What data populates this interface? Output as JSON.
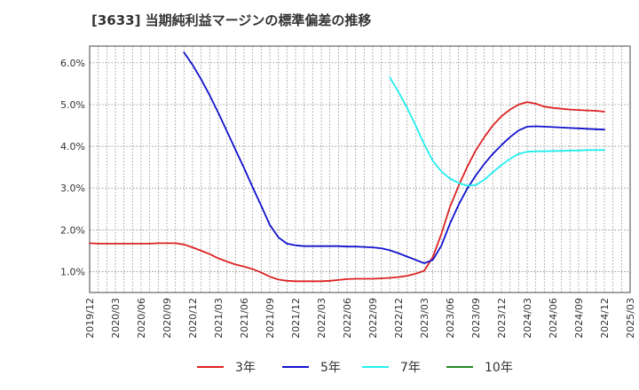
{
  "chart_data": {
    "type": "line",
    "title": "[3633]  当期純利益マージンの標準偏差の推移",
    "xlabel": "",
    "ylabel": "",
    "ylim": [
      0.5,
      6.4
    ],
    "y_ticks": [
      1.0,
      2.0,
      3.0,
      4.0,
      5.0,
      6.0
    ],
    "y_tick_labels": [
      "1.0%",
      "2.0%",
      "3.0%",
      "4.0%",
      "5.0%",
      "6.0%"
    ],
    "x_range": [
      "2019-12",
      "2025-03"
    ],
    "x_tick_labels": [
      "2019/12",
      "2020/03",
      "2020/06",
      "2020/09",
      "2020/12",
      "2021/03",
      "2021/06",
      "2021/09",
      "2021/12",
      "2022/03",
      "2022/06",
      "2022/09",
      "2022/12",
      "2023/03",
      "2023/06",
      "2023/09",
      "2023/12",
      "2024/03",
      "2024/06",
      "2024/09",
      "2024/12",
      "2025/03"
    ],
    "grid": true,
    "legend_position": "bottom",
    "series": [
      {
        "name": "3年",
        "color": "#dd2222",
        "points": [
          [
            "2019-12",
            1.68
          ],
          [
            "2020-01",
            1.67
          ],
          [
            "2020-02",
            1.67
          ],
          [
            "2020-03",
            1.67
          ],
          [
            "2020-04",
            1.67
          ],
          [
            "2020-05",
            1.67
          ],
          [
            "2020-06",
            1.67
          ],
          [
            "2020-07",
            1.67
          ],
          [
            "2020-08",
            1.68
          ],
          [
            "2020-09",
            1.68
          ],
          [
            "2020-10",
            1.68
          ],
          [
            "2020-11",
            1.65
          ],
          [
            "2020-12",
            1.58
          ],
          [
            "2021-01",
            1.5
          ],
          [
            "2021-02",
            1.42
          ],
          [
            "2021-03",
            1.32
          ],
          [
            "2021-04",
            1.24
          ],
          [
            "2021-05",
            1.17
          ],
          [
            "2021-06",
            1.12
          ],
          [
            "2021-07",
            1.06
          ],
          [
            "2021-08",
            0.98
          ],
          [
            "2021-09",
            0.88
          ],
          [
            "2021-10",
            0.81
          ],
          [
            "2021-11",
            0.78
          ],
          [
            "2021-12",
            0.77
          ],
          [
            "2022-01",
            0.77
          ],
          [
            "2022-02",
            0.77
          ],
          [
            "2022-03",
            0.77
          ],
          [
            "2022-04",
            0.78
          ],
          [
            "2022-05",
            0.8
          ],
          [
            "2022-06",
            0.82
          ],
          [
            "2022-07",
            0.83
          ],
          [
            "2022-08",
            0.83
          ],
          [
            "2022-09",
            0.83
          ],
          [
            "2022-10",
            0.84
          ],
          [
            "2022-11",
            0.85
          ],
          [
            "2022-12",
            0.87
          ],
          [
            "2023-01",
            0.9
          ],
          [
            "2023-02",
            0.95
          ],
          [
            "2023-03",
            1.02
          ],
          [
            "2023-04",
            1.35
          ],
          [
            "2023-05",
            1.9
          ],
          [
            "2023-06",
            2.55
          ],
          [
            "2023-07",
            3.05
          ],
          [
            "2023-08",
            3.5
          ],
          [
            "2023-09",
            3.9
          ],
          [
            "2023-10",
            4.22
          ],
          [
            "2023-11",
            4.5
          ],
          [
            "2023-12",
            4.72
          ],
          [
            "2024-01",
            4.88
          ],
          [
            "2024-02",
            5.0
          ],
          [
            "2024-03",
            5.06
          ],
          [
            "2024-04",
            5.02
          ],
          [
            "2024-05",
            4.95
          ],
          [
            "2024-06",
            4.92
          ],
          [
            "2024-07",
            4.9
          ],
          [
            "2024-08",
            4.88
          ],
          [
            "2024-09",
            4.87
          ],
          [
            "2024-10",
            4.86
          ],
          [
            "2024-11",
            4.85
          ],
          [
            "2024-12",
            4.83
          ]
        ]
      },
      {
        "name": "5年",
        "color": "#1111cc",
        "points": [
          [
            "2020-11",
            6.25
          ],
          [
            "2020-12",
            5.95
          ],
          [
            "2021-01",
            5.6
          ],
          [
            "2021-02",
            5.22
          ],
          [
            "2021-03",
            4.8
          ],
          [
            "2021-04",
            4.36
          ],
          [
            "2021-05",
            3.92
          ],
          [
            "2021-06",
            3.48
          ],
          [
            "2021-07",
            3.02
          ],
          [
            "2021-08",
            2.58
          ],
          [
            "2021-09",
            2.12
          ],
          [
            "2021-10",
            1.82
          ],
          [
            "2021-11",
            1.67
          ],
          [
            "2021-12",
            1.63
          ],
          [
            "2022-01",
            1.61
          ],
          [
            "2022-02",
            1.61
          ],
          [
            "2022-03",
            1.61
          ],
          [
            "2022-04",
            1.61
          ],
          [
            "2022-05",
            1.61
          ],
          [
            "2022-06",
            1.6
          ],
          [
            "2022-07",
            1.6
          ],
          [
            "2022-08",
            1.59
          ],
          [
            "2022-09",
            1.58
          ],
          [
            "2022-10",
            1.56
          ],
          [
            "2022-11",
            1.51
          ],
          [
            "2022-12",
            1.44
          ],
          [
            "2023-01",
            1.36
          ],
          [
            "2023-02",
            1.28
          ],
          [
            "2023-03",
            1.2
          ],
          [
            "2023-04",
            1.28
          ],
          [
            "2023-05",
            1.62
          ],
          [
            "2023-06",
            2.15
          ],
          [
            "2023-07",
            2.6
          ],
          [
            "2023-08",
            2.98
          ],
          [
            "2023-09",
            3.3
          ],
          [
            "2023-10",
            3.58
          ],
          [
            "2023-11",
            3.82
          ],
          [
            "2023-12",
            4.03
          ],
          [
            "2024-01",
            4.22
          ],
          [
            "2024-02",
            4.38
          ],
          [
            "2024-03",
            4.47
          ],
          [
            "2024-04",
            4.48
          ],
          [
            "2024-05",
            4.47
          ],
          [
            "2024-06",
            4.46
          ],
          [
            "2024-07",
            4.45
          ],
          [
            "2024-08",
            4.44
          ],
          [
            "2024-09",
            4.43
          ],
          [
            "2024-10",
            4.42
          ],
          [
            "2024-11",
            4.41
          ],
          [
            "2024-12",
            4.4
          ]
        ]
      },
      {
        "name": "7年",
        "color": "#22eeee",
        "points": [
          [
            "2022-11",
            5.65
          ],
          [
            "2022-12",
            5.3
          ],
          [
            "2023-01",
            4.92
          ],
          [
            "2023-02",
            4.5
          ],
          [
            "2023-03",
            4.05
          ],
          [
            "2023-04",
            3.65
          ],
          [
            "2023-05",
            3.4
          ],
          [
            "2023-06",
            3.23
          ],
          [
            "2023-07",
            3.12
          ],
          [
            "2023-08",
            3.06
          ],
          [
            "2023-09",
            3.07
          ],
          [
            "2023-10",
            3.2
          ],
          [
            "2023-11",
            3.38
          ],
          [
            "2023-12",
            3.55
          ],
          [
            "2024-01",
            3.7
          ],
          [
            "2024-02",
            3.82
          ],
          [
            "2024-03",
            3.87
          ],
          [
            "2024-04",
            3.88
          ],
          [
            "2024-05",
            3.88
          ],
          [
            "2024-06",
            3.89
          ],
          [
            "2024-07",
            3.89
          ],
          [
            "2024-08",
            3.9
          ],
          [
            "2024-09",
            3.9
          ],
          [
            "2024-10",
            3.91
          ],
          [
            "2024-11",
            3.91
          ],
          [
            "2024-12",
            3.91
          ]
        ]
      },
      {
        "name": "10年",
        "color": "#228822",
        "points": []
      }
    ]
  }
}
